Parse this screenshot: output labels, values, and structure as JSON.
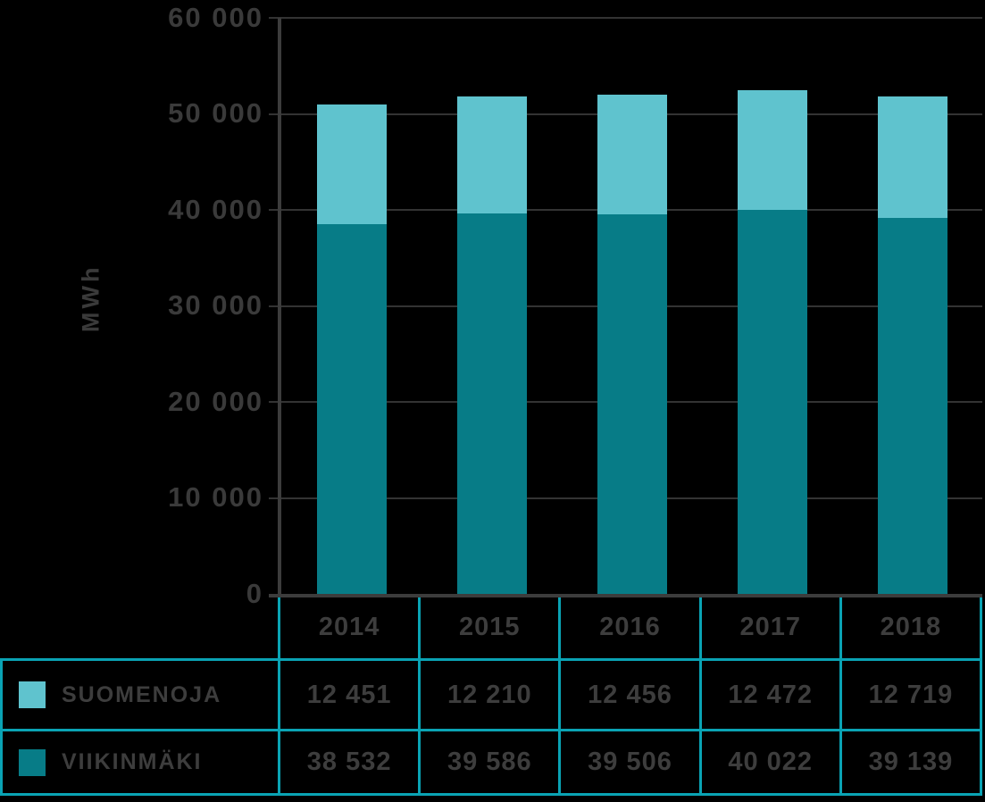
{
  "colors": {
    "suomenoja": "#5fc3ce",
    "viikinmaki": "#077c87",
    "table_border": "#0aa3b4",
    "text": "#3d3d3d",
    "axis": "#3c3c3c",
    "gridline": "#333333",
    "background": "#000000"
  },
  "chart_data": {
    "type": "bar",
    "stacked": true,
    "title": "",
    "xlabel": "",
    "ylabel": "MWh",
    "categories": [
      "2014",
      "2015",
      "2016",
      "2017",
      "2018"
    ],
    "series": [
      {
        "name": "SUOMENOJA",
        "color": "#5fc3ce",
        "values": [
          12451,
          12210,
          12456,
          12472,
          12719
        ]
      },
      {
        "name": "VIIKINMÄKI",
        "color": "#077c87",
        "values": [
          38532,
          39586,
          39506,
          40022,
          39139
        ]
      }
    ],
    "ylim": [
      0,
      60000
    ],
    "ytick_labels": [
      "60 000",
      "50 000",
      "40 000",
      "30 000",
      "20 000",
      "10 000",
      "0"
    ],
    "gridline_values": [
      60000,
      50000,
      40000,
      30000,
      20000,
      10000
    ],
    "grid": true,
    "legend_position": "bottom-table"
  },
  "table": {
    "years": [
      "2014",
      "2015",
      "2016",
      "2017",
      "2018"
    ],
    "rows": [
      {
        "label": "SUOMENOJA",
        "swatch": "light-teal-swatch",
        "values": [
          "12 451",
          "12 210",
          "12 456",
          "12 472",
          "12 719"
        ]
      },
      {
        "label": "VIIKINMÄKI",
        "swatch": "dark-teal-swatch",
        "values": [
          "38 532",
          "39 586",
          "39 506",
          "40 022",
          "39 139"
        ]
      }
    ]
  }
}
